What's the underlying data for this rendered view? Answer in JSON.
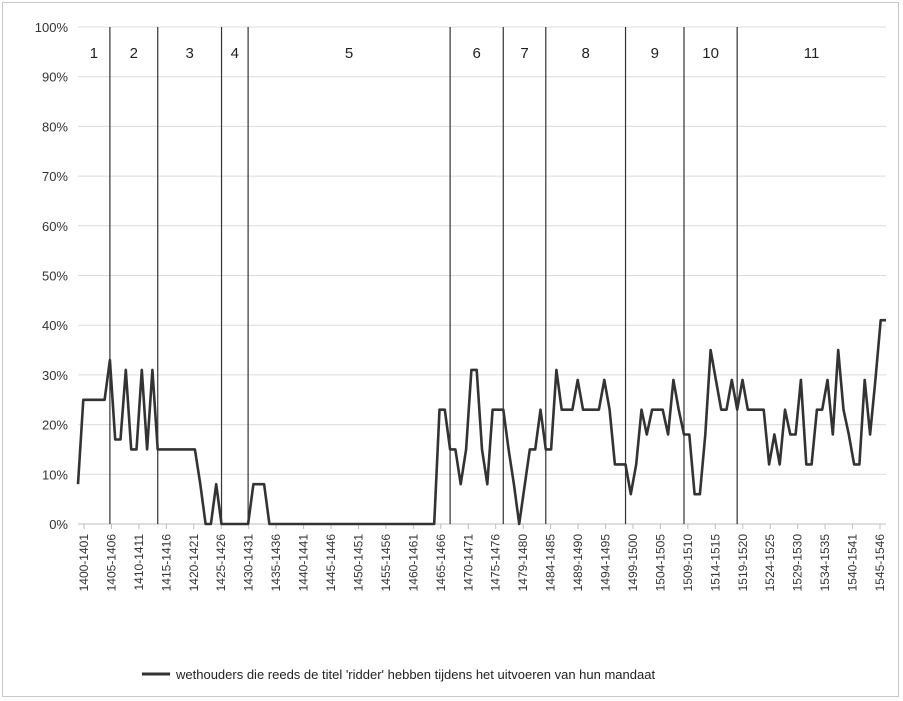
{
  "chart_data": {
    "type": "line",
    "title": "",
    "xlabel": "",
    "ylabel": "",
    "ylim": [
      0,
      1
    ],
    "y_ticks": [
      "0%",
      "10%",
      "20%",
      "30%",
      "40%",
      "50%",
      "60%",
      "70%",
      "80%",
      "90%",
      "100%"
    ],
    "x_tick_labels": [
      "1400-1401",
      "1405-1406",
      "1410-1411",
      "1415-1416",
      "1420-1421",
      "1425-1426",
      "1430-1431",
      "1435-1436",
      "1440-1441",
      "1445-1446",
      "1450-1451",
      "1455-1456",
      "1460-1461",
      "1465-1466",
      "1470-1471",
      "1475-1476",
      "1479-1480",
      "1484-1485",
      "1489-1490",
      "1494-1495",
      "1499-1500",
      "1504-1505",
      "1509-1510",
      "1514-1515",
      "1519-1520",
      "1524-1525",
      "1529-1530",
      "1534-1535",
      "1540-1541",
      "1545-1546"
    ],
    "grid": true,
    "legend_position": "bottom",
    "series": [
      {
        "name": "wethouders die reeds de titel 'ridder' hebben tijdens het uitvoeren van hun mandaat",
        "color": "#333333",
        "points": [
          [
            0,
            0.08
          ],
          [
            1,
            0.25
          ],
          [
            5,
            0.25
          ],
          [
            6,
            0.33
          ],
          [
            7,
            0.17
          ],
          [
            8,
            0.17
          ],
          [
            9,
            0.31
          ],
          [
            10,
            0.15
          ],
          [
            11,
            0.15
          ],
          [
            12,
            0.31
          ],
          [
            13,
            0.15
          ],
          [
            14,
            0.31
          ],
          [
            15,
            0.15
          ],
          [
            22,
            0.15
          ],
          [
            23,
            0.08
          ],
          [
            24,
            0.0
          ],
          [
            25,
            0.0
          ],
          [
            26,
            0.08
          ],
          [
            27,
            0.0
          ],
          [
            32,
            0.0
          ],
          [
            33,
            0.08
          ],
          [
            35,
            0.08
          ],
          [
            36,
            0.0
          ],
          [
            67,
            0.0
          ],
          [
            68,
            0.23
          ],
          [
            69,
            0.23
          ],
          [
            70,
            0.15
          ],
          [
            71,
            0.15
          ],
          [
            72,
            0.08
          ],
          [
            73,
            0.15
          ],
          [
            74,
            0.31
          ],
          [
            75,
            0.31
          ],
          [
            76,
            0.15
          ],
          [
            77,
            0.08
          ],
          [
            78,
            0.23
          ],
          [
            79,
            0.23
          ],
          [
            80,
            0.23
          ],
          [
            81,
            0.15
          ],
          [
            82,
            0.08
          ],
          [
            83,
            0.0
          ],
          [
            85,
            0.15
          ],
          [
            86,
            0.15
          ],
          [
            87,
            0.23
          ],
          [
            88,
            0.15
          ],
          [
            89,
            0.15
          ],
          [
            90,
            0.31
          ],
          [
            91,
            0.23
          ],
          [
            92,
            0.23
          ],
          [
            93,
            0.23
          ],
          [
            94,
            0.29
          ],
          [
            95,
            0.23
          ],
          [
            96,
            0.23
          ],
          [
            97,
            0.23
          ],
          [
            98,
            0.23
          ],
          [
            99,
            0.29
          ],
          [
            100,
            0.23
          ],
          [
            101,
            0.12
          ],
          [
            102,
            0.12
          ],
          [
            103,
            0.12
          ],
          [
            104,
            0.06
          ],
          [
            105,
            0.12
          ],
          [
            106,
            0.23
          ],
          [
            107,
            0.18
          ],
          [
            108,
            0.23
          ],
          [
            109,
            0.23
          ],
          [
            110,
            0.23
          ],
          [
            111,
            0.18
          ],
          [
            112,
            0.29
          ],
          [
            113,
            0.23
          ],
          [
            114,
            0.18
          ],
          [
            115,
            0.18
          ],
          [
            116,
            0.06
          ],
          [
            117,
            0.06
          ],
          [
            118,
            0.18
          ],
          [
            119,
            0.35
          ],
          [
            120,
            0.29
          ],
          [
            121,
            0.23
          ],
          [
            122,
            0.23
          ],
          [
            123,
            0.29
          ],
          [
            124,
            0.23
          ],
          [
            125,
            0.29
          ],
          [
            126,
            0.23
          ],
          [
            127,
            0.23
          ],
          [
            128,
            0.23
          ],
          [
            129,
            0.23
          ],
          [
            130,
            0.12
          ],
          [
            131,
            0.18
          ],
          [
            132,
            0.12
          ],
          [
            133,
            0.23
          ],
          [
            134,
            0.18
          ],
          [
            135,
            0.18
          ],
          [
            136,
            0.29
          ],
          [
            137,
            0.12
          ],
          [
            138,
            0.12
          ],
          [
            139,
            0.23
          ],
          [
            140,
            0.23
          ],
          [
            141,
            0.29
          ],
          [
            142,
            0.18
          ],
          [
            143,
            0.35
          ],
          [
            144,
            0.23
          ],
          [
            145,
            0.18
          ],
          [
            146,
            0.12
          ],
          [
            147,
            0.12
          ],
          [
            148,
            0.29
          ],
          [
            149,
            0.18
          ],
          [
            150,
            0.29
          ],
          [
            151,
            0.41
          ],
          [
            152,
            0.41
          ]
        ]
      }
    ],
    "periods": [
      {
        "label": "1",
        "end": 6
      },
      {
        "label": "2",
        "end": 15
      },
      {
        "label": "3",
        "end": 27
      },
      {
        "label": "4",
        "end": 32
      },
      {
        "label": "5",
        "end": 70
      },
      {
        "label": "6",
        "end": 80
      },
      {
        "label": "7",
        "end": 88
      },
      {
        "label": "8",
        "end": 103
      },
      {
        "label": "9",
        "end": 114
      },
      {
        "label": "10",
        "end": 124
      },
      {
        "label": "11",
        "end": 152
      }
    ]
  }
}
